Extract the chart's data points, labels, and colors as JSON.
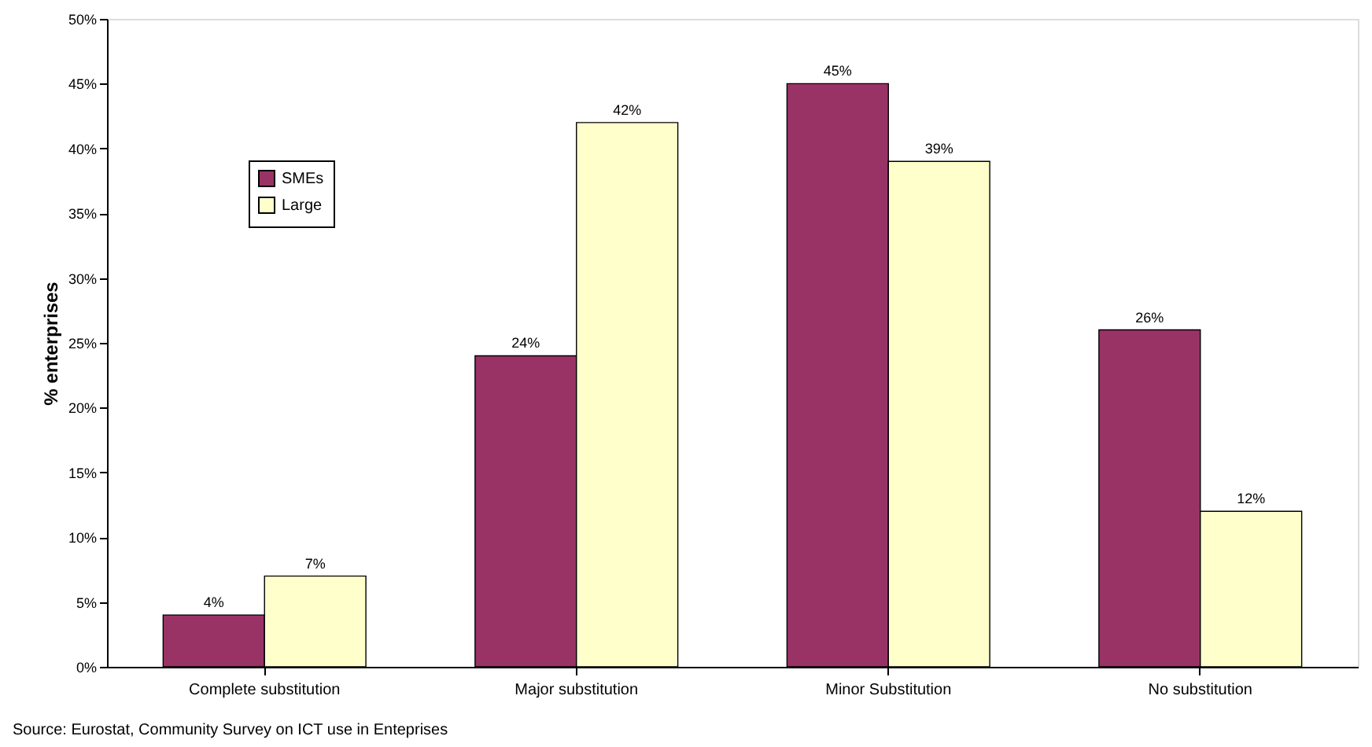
{
  "chart_data": {
    "type": "bar",
    "ylabel": "% enterprises",
    "categories": [
      "Complete substitution",
      "Major substitution",
      "Minor Substitution",
      "No substitution"
    ],
    "series": [
      {
        "name": "SMEs",
        "color": "#993366",
        "values": [
          4,
          24,
          45,
          26
        ]
      },
      {
        "name": "Large",
        "color": "#ffffcc",
        "values": [
          7,
          42,
          39,
          12
        ]
      }
    ],
    "ylim": [
      0,
      50
    ],
    "yticks": [
      {
        "value": 0,
        "label": "0%"
      },
      {
        "value": 5,
        "label": "5%"
      },
      {
        "value": 10,
        "label": "10%"
      },
      {
        "value": 15,
        "label": "15%"
      },
      {
        "value": 20,
        "label": "20%"
      },
      {
        "value": 25,
        "label": "25%"
      },
      {
        "value": 30,
        "label": "30%"
      },
      {
        "value": 35,
        "label": "35%"
      },
      {
        "value": 40,
        "label": "40%"
      },
      {
        "value": 45,
        "label": "45%"
      },
      {
        "value": 50,
        "label": "50%"
      }
    ],
    "value_labels": [
      [
        "4%",
        "24%",
        "45%",
        "26%"
      ],
      [
        "7%",
        "42%",
        "39%",
        "12%"
      ]
    ],
    "grid": false,
    "legend": "top left",
    "annotations": [
      "Source: Eurostat, Community Survey on ICT use in Enteprises"
    ]
  }
}
